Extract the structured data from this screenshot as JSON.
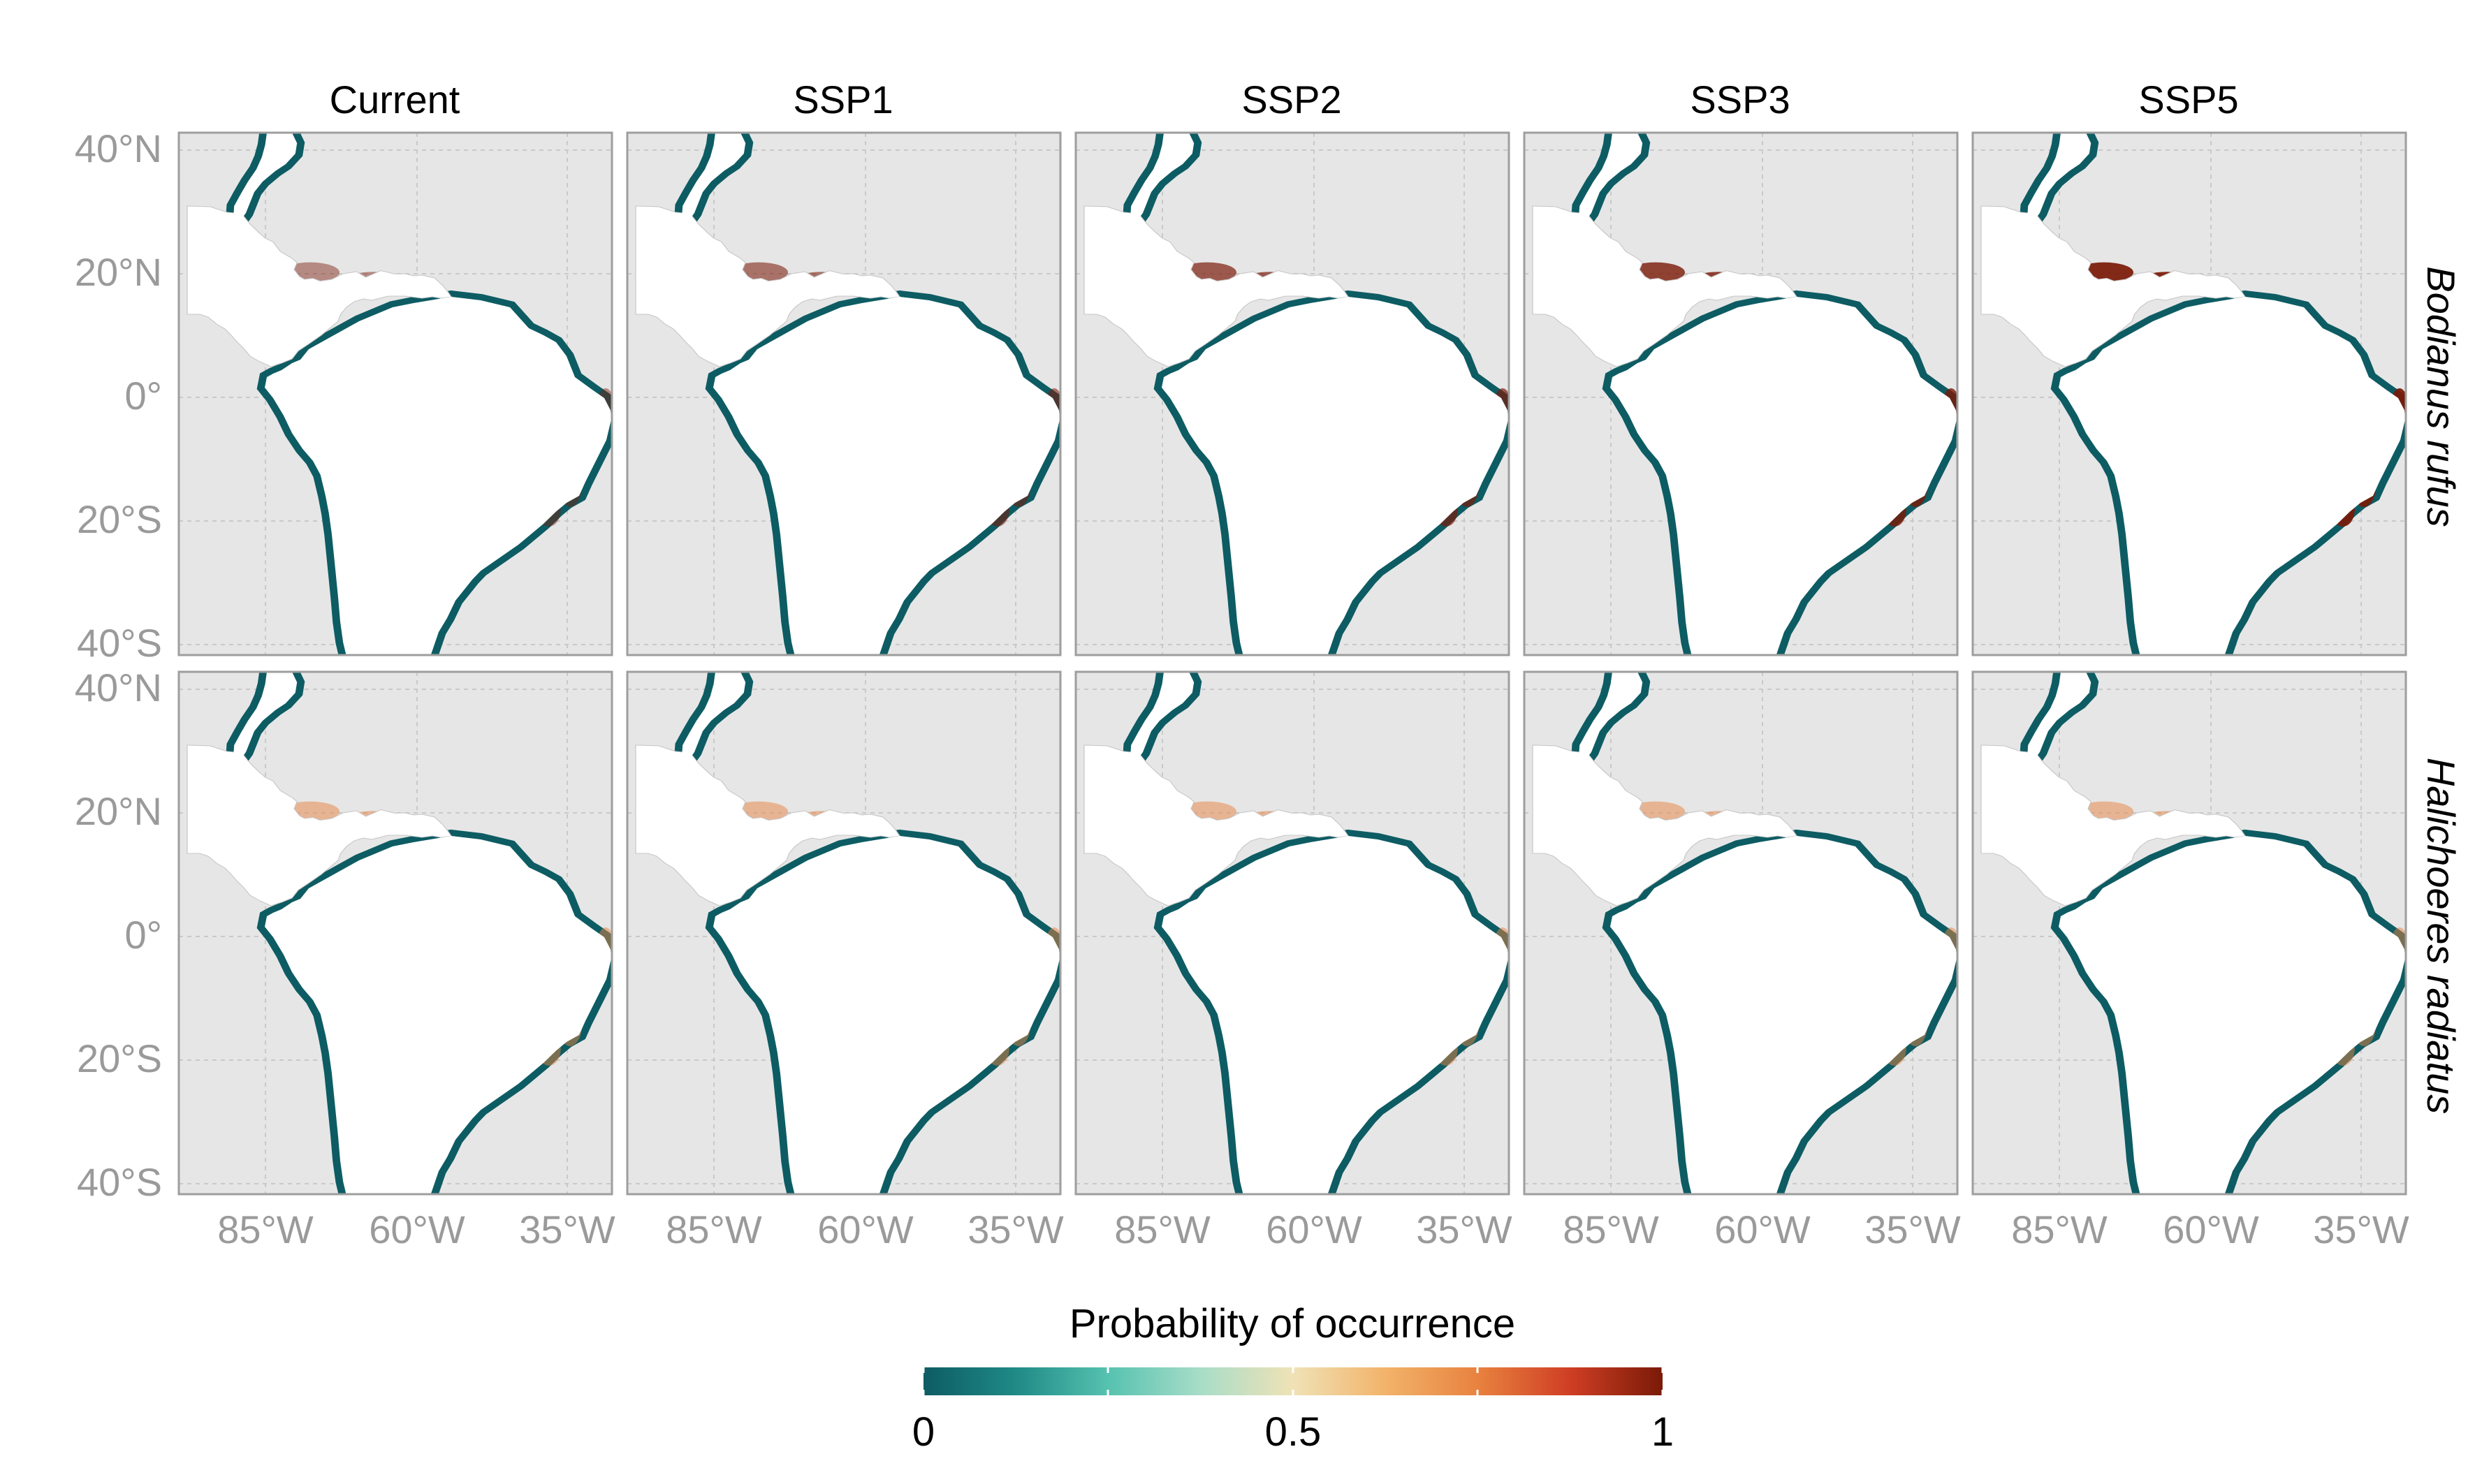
{
  "columns": [
    "Current",
    "SSP1",
    "SSP2",
    "SSP3",
    "SSP5"
  ],
  "rows": [
    "Bodianus rufus",
    "Halichoeres radiatus"
  ],
  "y_ticks": [
    "40°N",
    "20°N",
    "0°",
    "20°S",
    "40°S"
  ],
  "x_ticks": [
    "85°W",
    "60°W",
    "35°W"
  ],
  "legend": {
    "title": "Probability of occurrence",
    "ticks": [
      "0",
      "0.5",
      "1"
    ],
    "colors": [
      "#0d5c63",
      "#1f8a86",
      "#56c2b0",
      "#a8ddc8",
      "#f0e2b6",
      "#f2b36a",
      "#e8823f",
      "#cf3e24",
      "#7a1a08"
    ]
  },
  "colors": {
    "land": "#ffffff",
    "ocean": "#e6e6e6",
    "panel_border": "#9e9e9e",
    "low": "#0d5c63",
    "high": "#7a1a08"
  }
}
